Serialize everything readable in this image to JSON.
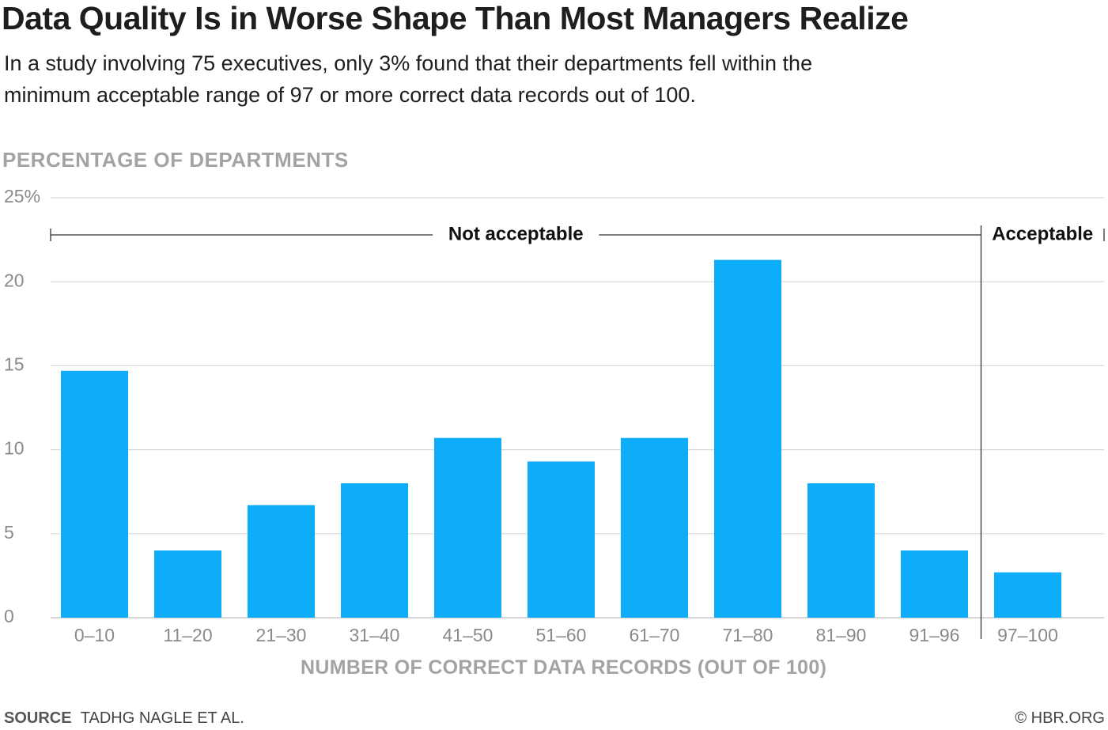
{
  "header": {
    "title": "Data Quality Is in Worse Shape Than Most Managers Realize",
    "subtitle": "In a study involving 75 executives, only 3% found that their departments fell within the minimum acceptable range of 97 or more correct data records out of 100."
  },
  "footer": {
    "source_label": "SOURCE",
    "source_text": "TADHG NAGLE ET AL.",
    "copyright": "© HBR.ORG"
  },
  "chart_data": {
    "type": "bar",
    "title": "Data Quality Is in Worse Shape Than Most Managers Realize",
    "ylabel": "PERCENTAGE OF DEPARTMENTS",
    "xlabel": "NUMBER OF CORRECT DATA RECORDS (OUT OF 100)",
    "categories": [
      "0–10",
      "11–20",
      "21–30",
      "31–40",
      "41–50",
      "51–60",
      "61–70",
      "71–80",
      "81–90",
      "91–96",
      "97–100"
    ],
    "values": [
      14.7,
      4.0,
      6.7,
      8.0,
      10.7,
      9.3,
      10.7,
      21.3,
      8.0,
      4.0,
      2.7
    ],
    "ylim": [
      0,
      25
    ],
    "yticks": [
      0,
      5,
      10,
      15,
      20,
      25
    ],
    "ytick_labels": [
      "0",
      "5",
      "10",
      "15",
      "20",
      "25%"
    ],
    "grid": true,
    "bar_color": "#0eadf9",
    "grid_color": "#d9d9d9",
    "ranges": [
      {
        "label": "Not acceptable",
        "from_index": 0,
        "to_index": 9
      },
      {
        "label": "Acceptable",
        "from_index": 10,
        "to_index": 10
      }
    ]
  }
}
